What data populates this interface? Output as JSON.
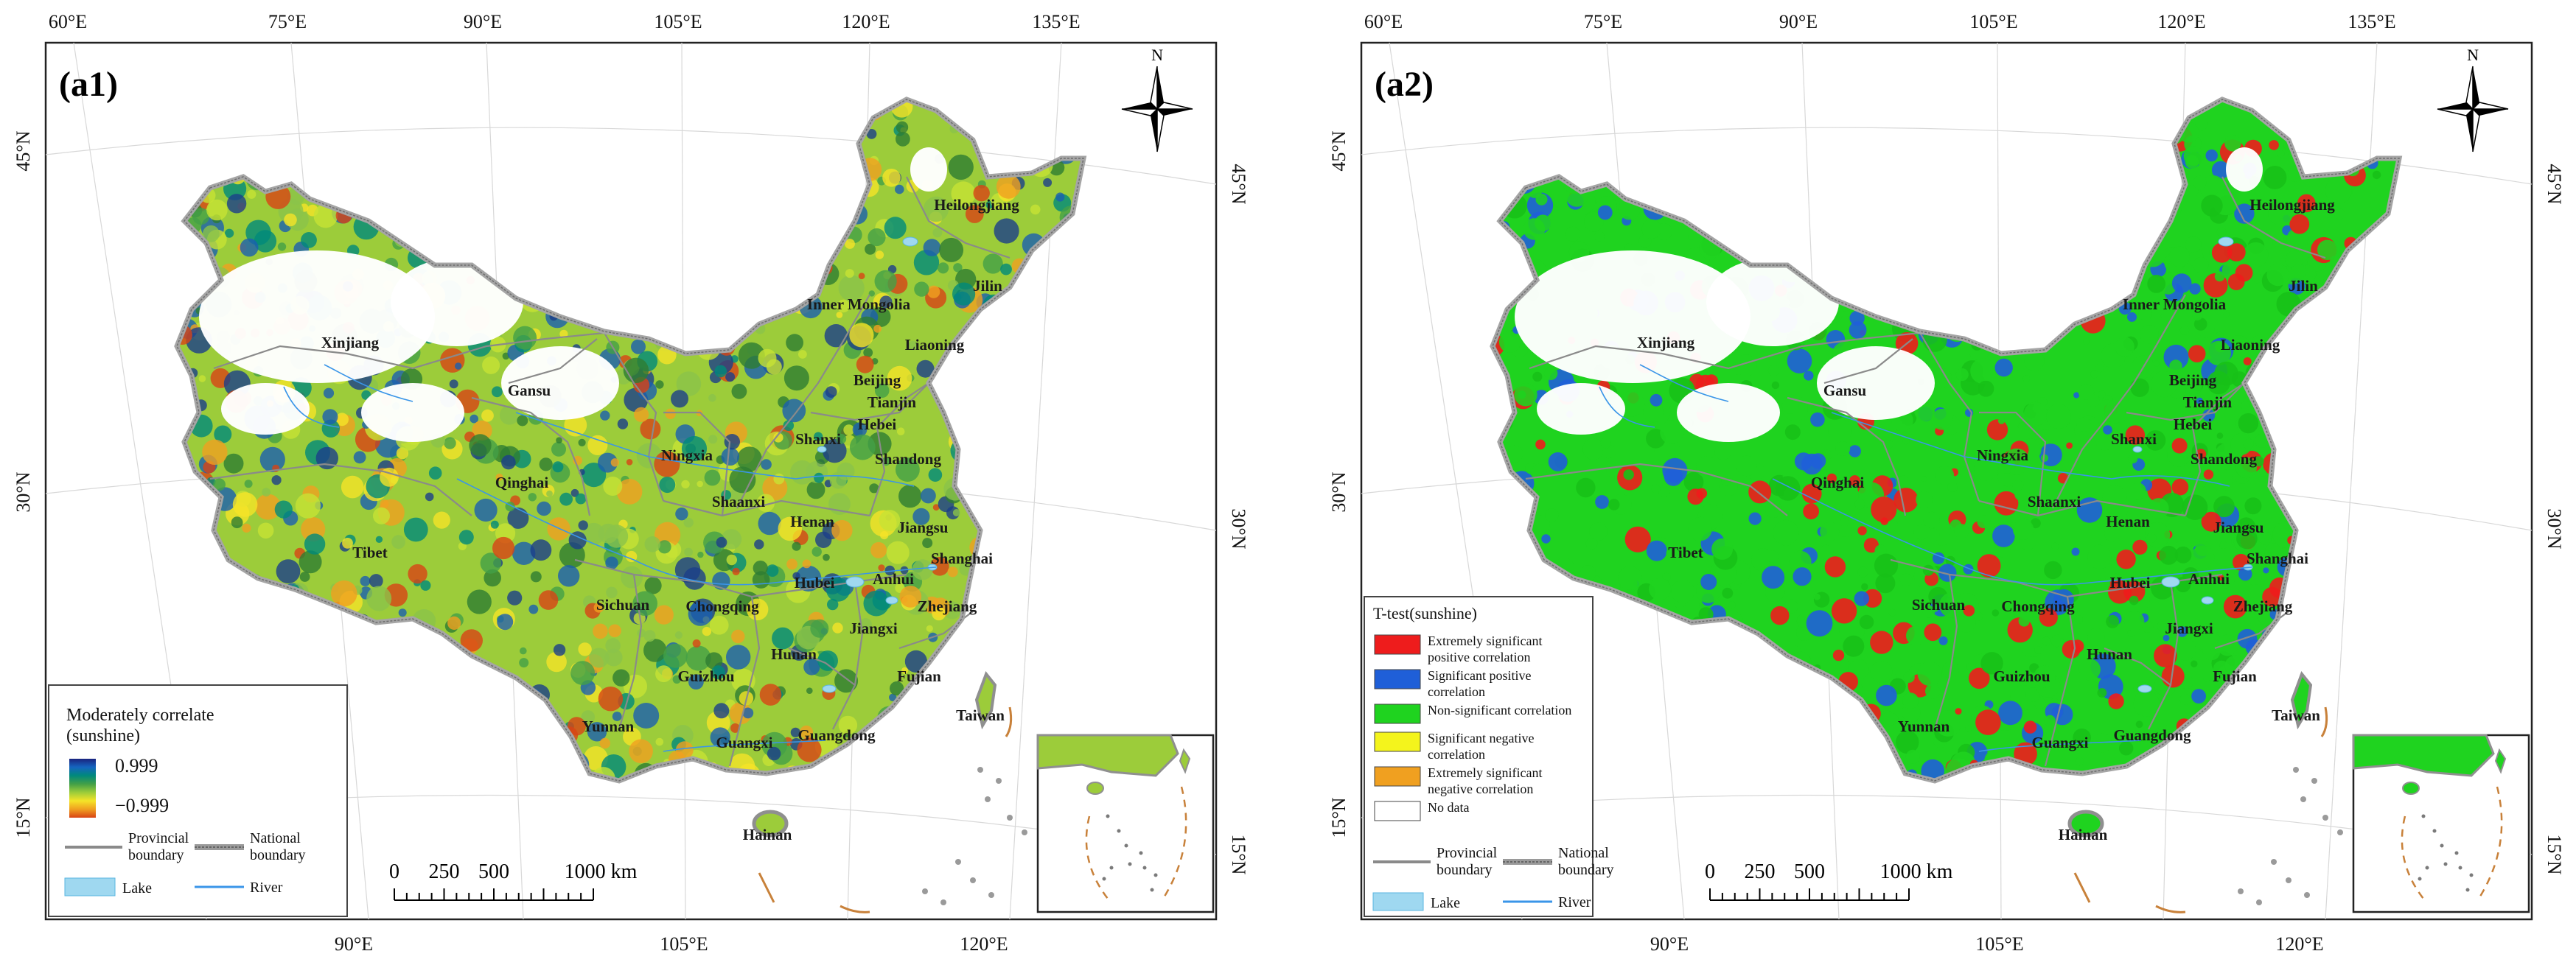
{
  "panels": [
    {
      "id": "a1",
      "label": "(a1)",
      "top_axis_labels": [
        "60°E",
        "75°E",
        "90°E",
        "105°E",
        "120°E",
        "135°E"
      ],
      "bottom_axis_labels": [
        "90°E",
        "105°E",
        "120°E"
      ],
      "left_axis_labels": [
        "45°N",
        "30°N",
        "15°N"
      ],
      "right_axis_labels": [
        "45°N",
        "30°N",
        "15°N"
      ],
      "north_label": "N",
      "provinces": [
        "Heilongjiang",
        "Jilin",
        "Inner Mongolia",
        "Liaoning",
        "Xinjiang",
        "Gansu",
        "Beijing",
        "Tianjin",
        "Hebei",
        "Shanxi",
        "Shandong",
        "Ningxia",
        "Qinghai",
        "Shaanxi",
        "Henan",
        "Jiangsu",
        "Tibet",
        "Anhui",
        "Shanghai",
        "Hubei",
        "Sichuan",
        "Chongqing",
        "Zhejiang",
        "Jiangxi",
        "Hunan",
        "Guizhou",
        "Fujian",
        "Yunnan",
        "Taiwan",
        "Guangdong",
        "Guangxi",
        "Hainan"
      ],
      "scale_bar": {
        "ticks": [
          "0",
          "250",
          "500",
          "1000 km"
        ]
      },
      "legend": {
        "title_line1": "Moderately correlate",
        "title_line2": "(sunshine)",
        "max_label": "0.999",
        "min_label": "−0.999",
        "gradient_colors": [
          "#1a237e",
          "#1565c0",
          "#00897b",
          "#43a047",
          "#9ccc3a",
          "#f5e428",
          "#f0a020",
          "#d84315"
        ],
        "provincial_boundary": "Provincial boundary",
        "national_boundary": "National boundary",
        "lake": "Lake",
        "river": "River"
      }
    },
    {
      "id": "a2",
      "label": "(a2)",
      "top_axis_labels": [
        "60°E",
        "75°E",
        "90°E",
        "105°E",
        "120°E",
        "135°E"
      ],
      "bottom_axis_labels": [
        "90°E",
        "105°E",
        "120°E"
      ],
      "left_axis_labels": [
        "45°N",
        "30°N",
        "15°N"
      ],
      "right_axis_labels": [
        "45°N",
        "30°N",
        "15°N"
      ],
      "north_label": "N",
      "provinces": [
        "Heilongjiang",
        "Jilin",
        "Inner Mongolia",
        "Liaoning",
        "Xinjiang",
        "Gansu",
        "Beijing",
        "Tianjin",
        "Hebei",
        "Shanxi",
        "Shandong",
        "Ningxia",
        "Qinghai",
        "Shaanxi",
        "Henan",
        "Jiangsu",
        "Tibet",
        "Anhui",
        "Shanghai",
        "Hubei",
        "Sichuan",
        "Chongqing",
        "Zhejiang",
        "Jiangxi",
        "Hunan",
        "Guizhou",
        "Fujian",
        "Yunnan",
        "Taiwan",
        "Guangdong",
        "Guangxi",
        "Hainan"
      ],
      "scale_bar": {
        "ticks": [
          "0",
          "250",
          "500",
          "1000 km"
        ]
      },
      "legend": {
        "title": "T-test(sunshine)",
        "categories": [
          {
            "lines": [
              "Extremely significant",
              "positive correlation"
            ],
            "color": "#ee1c1c"
          },
          {
            "lines": [
              "Significant positive",
              "correlation"
            ],
            "color": "#1f5fd8"
          },
          {
            "lines": [
              "Non-significant correlation"
            ],
            "color": "#1fd31f"
          },
          {
            "lines": [
              "Significant negative",
              "correlation"
            ],
            "color": "#f4f41c"
          },
          {
            "lines": [
              "Extremely significant",
              "negative correlation"
            ],
            "color": "#f0a020"
          },
          {
            "lines": [
              "No data"
            ],
            "color": "#ffffff"
          }
        ],
        "provincial_boundary": "Provincial boundary",
        "national_boundary": "National boundary",
        "lake": "Lake",
        "river": "River"
      }
    }
  ]
}
